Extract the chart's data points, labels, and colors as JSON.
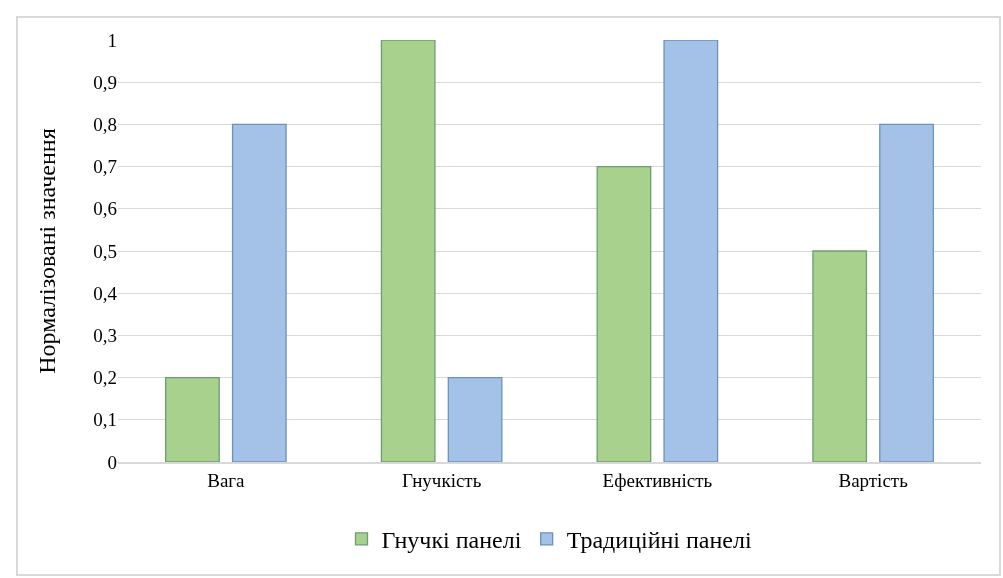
{
  "chart_data": {
    "type": "bar",
    "ylabel": "Нормалізовані значення",
    "categories": [
      "Вага",
      "Гнучкість",
      "Ефективність",
      "Вартість"
    ],
    "series": [
      {
        "name": "Гнучкі панелі",
        "color": "#a9d18e",
        "values": [
          0.2,
          1,
          0.7,
          0.5
        ]
      },
      {
        "name": "Традиційні панелі",
        "color": "#a4c2e8",
        "values": [
          0.8,
          0.2,
          1,
          0.8
        ]
      }
    ],
    "ylim": [
      0,
      1
    ],
    "yticks": [
      0,
      {
        "value": 0.1,
        "label": "0,1"
      },
      {
        "value": 0.2,
        "label": "0,2"
      },
      {
        "value": 0.3,
        "label": "0,3"
      },
      {
        "value": 0.4,
        "label": "0,4"
      },
      {
        "value": 0.5,
        "label": "0,5"
      },
      {
        "value": 0.6,
        "label": "0,6"
      },
      {
        "value": 0.7,
        "label": "0,7"
      },
      {
        "value": 0.8,
        "label": "0,8"
      },
      {
        "value": 0.9,
        "label": "0,9"
      },
      1
    ],
    "grid": "y",
    "legend": "bottom"
  }
}
